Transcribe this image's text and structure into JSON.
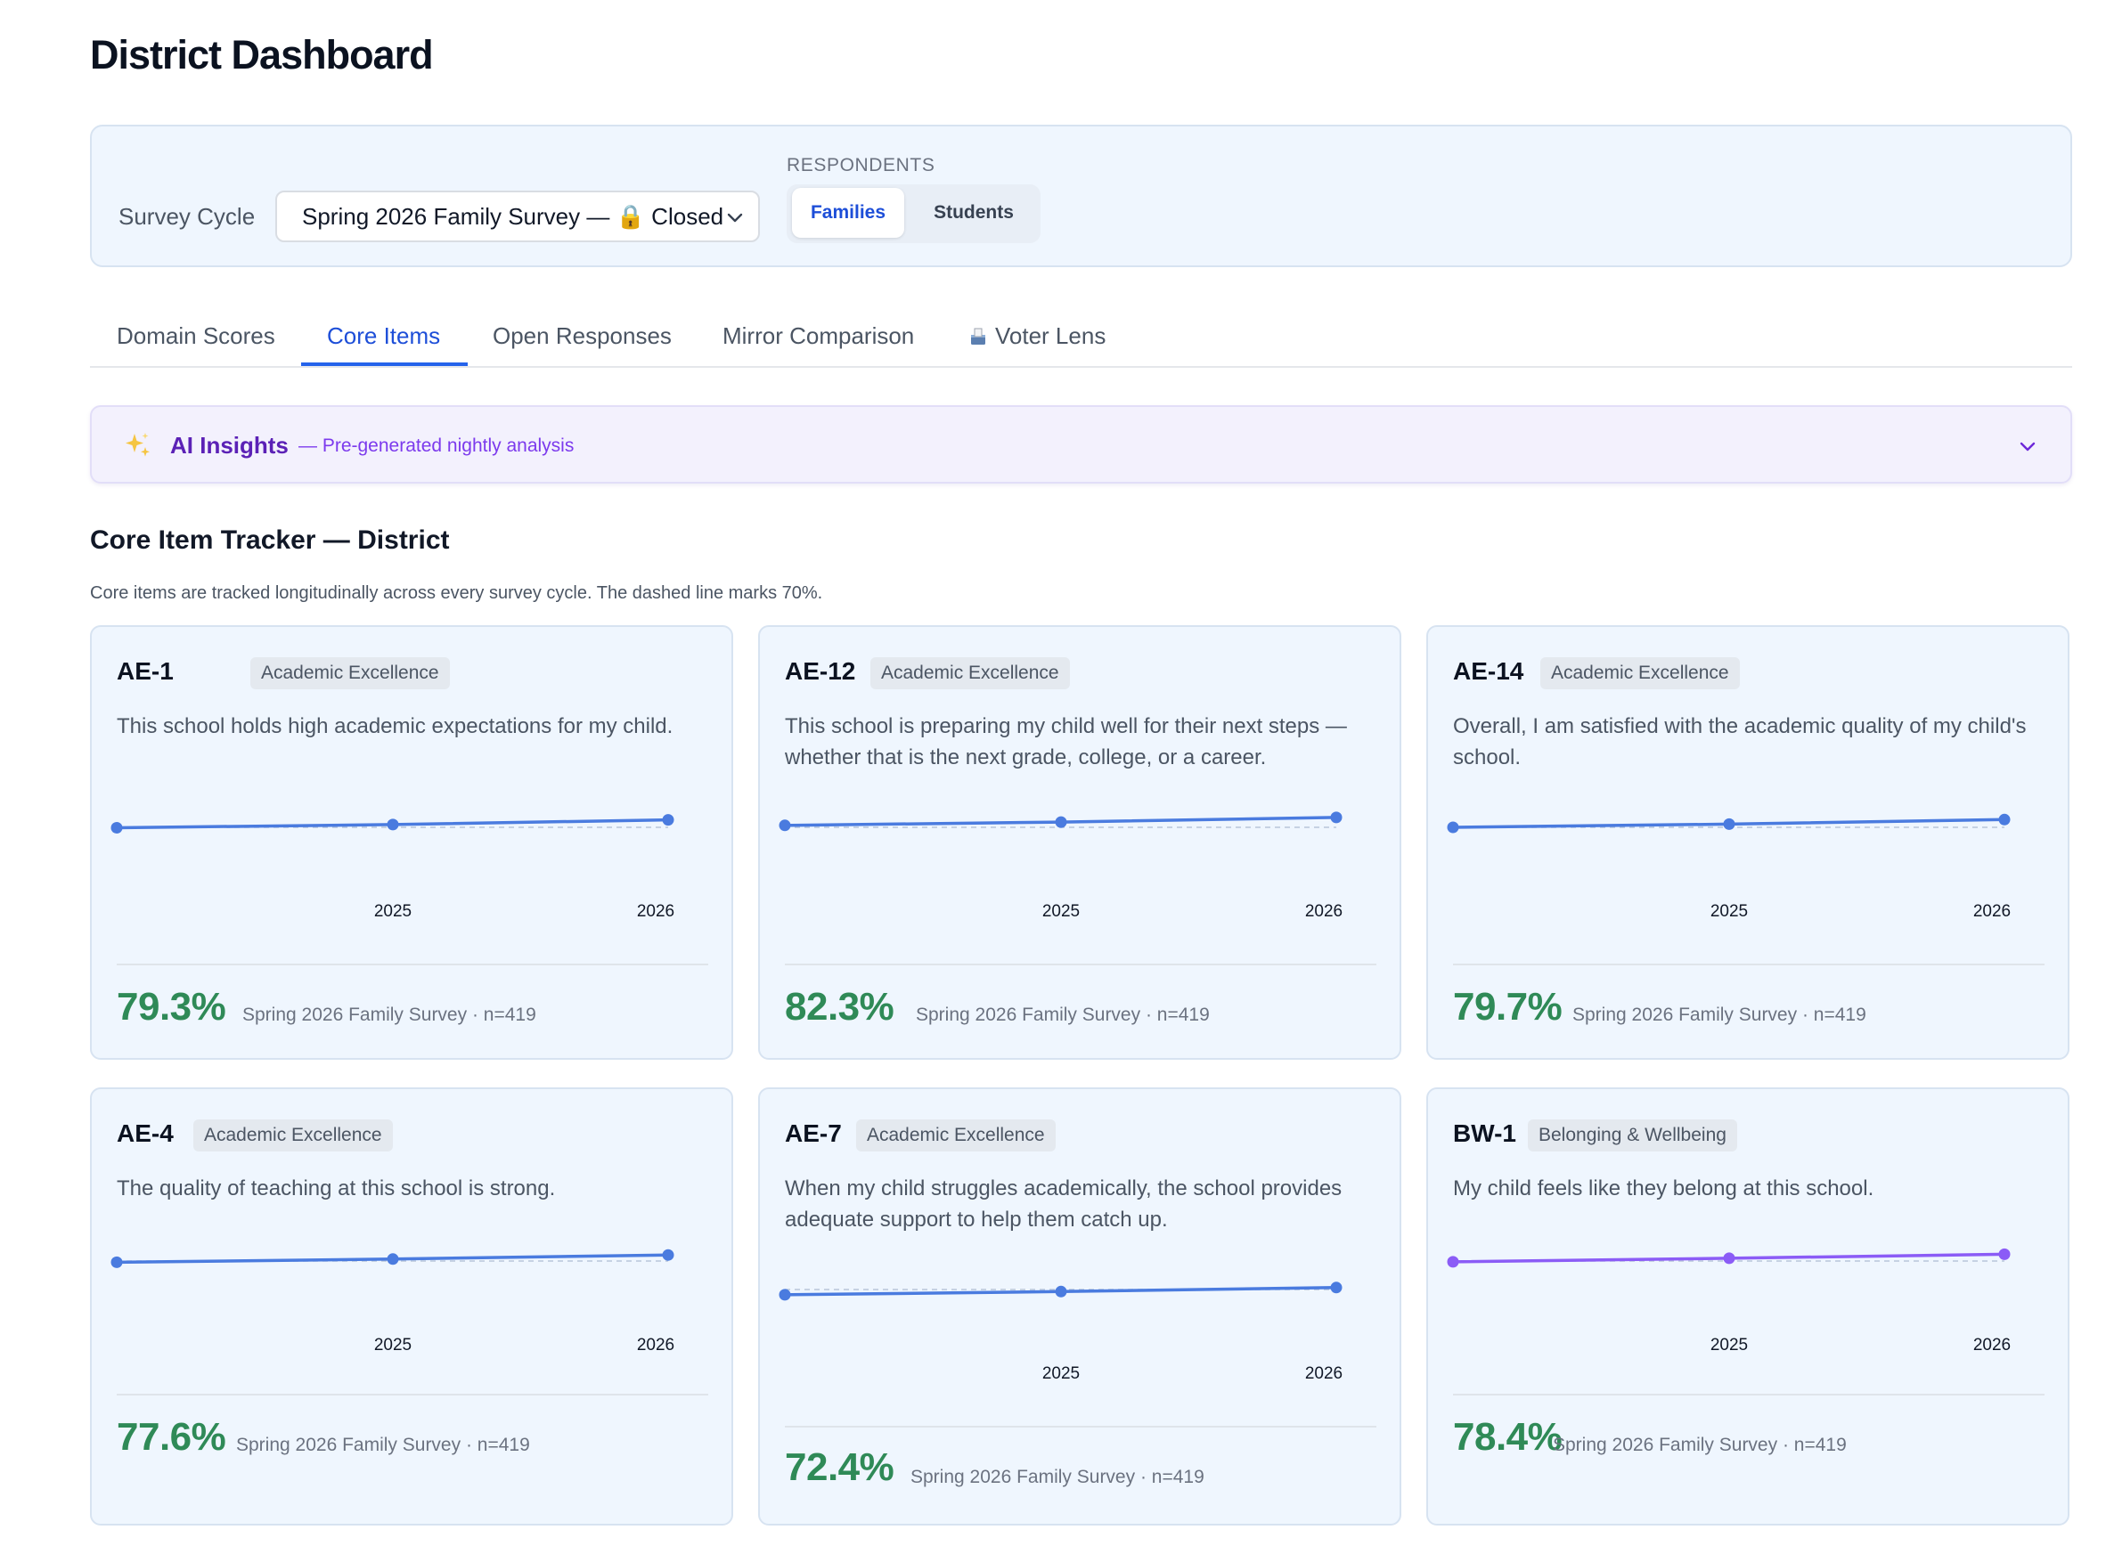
{
  "page": {
    "title": "District Dashboard"
  },
  "filters": {
    "survey_cycle_label": "Survey Cycle",
    "survey_cycle_value": "Spring 2026 Family Survey — 🔒 Closed",
    "respondents_label": "RESPONDENTS",
    "respondents_options": [
      "Families",
      "Students"
    ],
    "respondents_selected": "Families"
  },
  "tabs": [
    {
      "label": "Domain Scores"
    },
    {
      "label": "Core Items",
      "active": true
    },
    {
      "label": "Open Responses"
    },
    {
      "label": "Mirror Comparison"
    },
    {
      "label": "Voter Lens",
      "icon": "ballot-box-icon"
    }
  ],
  "ai_insights": {
    "icon": "sparkles-icon",
    "title": "AI Insights",
    "subtitle": "— Pre-generated nightly analysis"
  },
  "tracker": {
    "title": "Core Item Tracker — District",
    "description": "Core items are tracked longitudinally across every survey cycle. The dashed line marks 70%.",
    "threshold": 70,
    "accent_colors": {
      "academic": "#4a7bdf",
      "belonging": "#8b5cf6",
      "value": "#2f8a57"
    }
  },
  "cards": [
    {
      "code": "AE-1",
      "domain": "Academic Excellence",
      "question": "This school holds high academic expectations for my child.",
      "value": "79.3%",
      "meta": "Spring 2026 Family Survey · n=419"
    },
    {
      "code": "AE-12",
      "domain": "Academic Excellence",
      "question": "This school is preparing my child well for their next steps — whether that is the next grade, college, or a career.",
      "value": "82.3%",
      "meta": "Spring 2026 Family Survey · n=419"
    },
    {
      "code": "AE-14",
      "domain": "Academic Excellence",
      "question": "Overall, I am satisfied with the academic quality of my child's school.",
      "value": "79.7%",
      "meta": "Spring 2026 Family Survey · n=419"
    },
    {
      "code": "AE-4",
      "domain": "Academic Excellence",
      "question": "The quality of teaching at this school is strong.",
      "value": "77.6%",
      "meta": "Spring 2026 Family Survey · n=419"
    },
    {
      "code": "AE-7",
      "domain": "Academic Excellence",
      "question": "When my child struggles academically, the school provides adequate support to help them catch up.",
      "value": "72.4%",
      "meta": "Spring 2026 Family Survey · n=419"
    },
    {
      "code": "BW-1",
      "domain": "Belonging & Wellbeing",
      "question": "My child feels like they belong at this school.",
      "value": "78.4%",
      "meta": "Spring 2026 Family Survey · n=419"
    }
  ],
  "chart_data": [
    {
      "type": "line",
      "item": "AE-1",
      "x": [
        "",
        "2025",
        "2026"
      ],
      "series": [
        {
          "values": [
            69.5,
            73.5,
            79.3
          ]
        }
      ],
      "threshold": 70,
      "ylim": [
        0,
        100
      ]
    },
    {
      "type": "line",
      "item": "AE-12",
      "x": [
        "",
        "2025",
        "2026"
      ],
      "series": [
        {
          "values": [
            72.5,
            76.5,
            82.3
          ]
        }
      ],
      "threshold": 70,
      "ylim": [
        0,
        100
      ]
    },
    {
      "type": "line",
      "item": "AE-14",
      "x": [
        "",
        "2025",
        "2026"
      ],
      "series": [
        {
          "values": [
            70,
            74,
            79.7
          ]
        }
      ],
      "threshold": 70,
      "ylim": [
        0,
        100
      ]
    },
    {
      "type": "line",
      "item": "AE-4",
      "x": [
        "",
        "2025",
        "2026"
      ],
      "series": [
        {
          "values": [
            68.5,
            72.5,
            77.6
          ]
        }
      ],
      "threshold": 70,
      "ylim": [
        0,
        100
      ]
    },
    {
      "type": "line",
      "item": "AE-7",
      "x": [
        "",
        "2025",
        "2026"
      ],
      "series": [
        {
          "values": [
            63.5,
            67.5,
            72.4
          ]
        }
      ],
      "threshold": 70,
      "ylim": [
        0,
        100
      ]
    },
    {
      "type": "line",
      "item": "BW-1",
      "x": [
        "",
        "2025",
        "2026"
      ],
      "series": [
        {
          "values": [
            69,
            73.5,
            78.4
          ]
        }
      ],
      "threshold": 70,
      "ylim": [
        0,
        100
      ]
    }
  ]
}
